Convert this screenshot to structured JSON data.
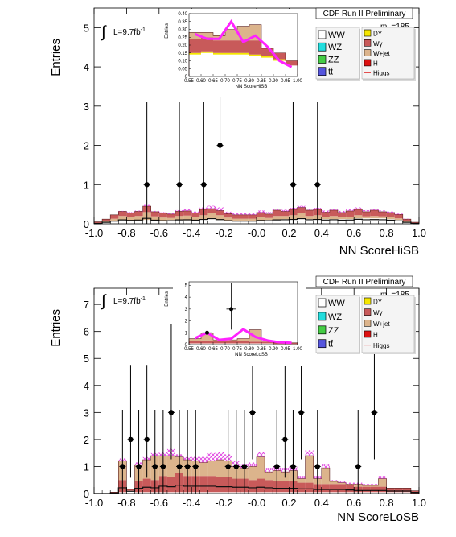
{
  "chart_data": [
    {
      "type": "bar",
      "title": "CDF Run II Preliminary",
      "ylabel": "Entries",
      "xlabel": "NN ScoreHiSB",
      "lumi": "L=9.7fb",
      "lumi_sup": "-1",
      "integral": "∫",
      "mass_label": "m",
      "mass_sub": "H",
      "mass_value": "=185",
      "xlim": [
        -1.0,
        1.0
      ],
      "ylim": [
        0,
        5.5
      ],
      "xticks": [
        "-1.0",
        "-0.8",
        "-0.6",
        "-0.4",
        "-0.2",
        "-0.0",
        "0.2",
        "0.4",
        "0.6",
        "0.8",
        "1.0"
      ],
      "yticks": [
        "0",
        "1",
        "2",
        "3",
        "4",
        "5"
      ],
      "bin_edges": [
        -1.0,
        -0.95,
        -0.9,
        -0.85,
        -0.8,
        -0.75,
        -0.7,
        -0.65,
        -0.6,
        -0.55,
        -0.5,
        -0.45,
        -0.4,
        -0.35,
        -0.3,
        -0.25,
        -0.2,
        -0.15,
        -0.1,
        -0.05,
        0.0,
        0.05,
        0.1,
        0.15,
        0.2,
        0.25,
        0.3,
        0.35,
        0.4,
        0.45,
        0.5,
        0.55,
        0.6,
        0.65,
        0.7,
        0.75,
        0.8,
        0.85,
        0.9,
        0.95,
        1.0
      ],
      "series": [
        {
          "name": "WW",
          "color": "#ffffff",
          "values": [
            0.02,
            0.05,
            0.08,
            0.1,
            0.08,
            0.08,
            0.1,
            0.09,
            0.08,
            0.1,
            0.1,
            0.09,
            0.1,
            0.12,
            0.12,
            0.1,
            0.08,
            0.08,
            0.08,
            0.08,
            0.09,
            0.1,
            0.1,
            0.12,
            0.12,
            0.12,
            0.12,
            0.12,
            0.12,
            0.12,
            0.12,
            0.12,
            0.14,
            0.14,
            0.14,
            0.14,
            0.12,
            0.1,
            0.05,
            0.02
          ]
        },
        {
          "name": "W+jet",
          "color": "#dcb48c",
          "values": [
            0.0,
            0.02,
            0.05,
            0.1,
            0.1,
            0.12,
            0.2,
            0.1,
            0.08,
            0.05,
            0.1,
            0.12,
            0.08,
            0.1,
            0.15,
            0.12,
            0.08,
            0.05,
            0.05,
            0.05,
            0.08,
            0.05,
            0.1,
            0.08,
            0.1,
            0.15,
            0.08,
            0.1,
            0.06,
            0.08,
            0.05,
            0.06,
            0.08,
            0.05,
            0.06,
            0.05,
            0.05,
            0.04,
            0.02,
            0.0
          ]
        },
        {
          "name": "Wγ",
          "color": "#c85a5a",
          "values": [
            0.03,
            0.05,
            0.1,
            0.12,
            0.1,
            0.12,
            0.15,
            0.12,
            0.12,
            0.1,
            0.12,
            0.12,
            0.1,
            0.15,
            0.12,
            0.12,
            0.1,
            0.1,
            0.1,
            0.1,
            0.12,
            0.1,
            0.15,
            0.12,
            0.15,
            0.15,
            0.15,
            0.15,
            0.12,
            0.15,
            0.12,
            0.15,
            0.15,
            0.12,
            0.15,
            0.12,
            0.12,
            0.1,
            0.05,
            0.02
          ]
        }
      ],
      "signal_hatched": [
        0.0,
        0.0,
        0.0,
        0.01,
        0.02,
        0.02,
        0.03,
        0.02,
        0.02,
        0.02,
        0.03,
        0.04,
        0.04,
        0.06,
        0.07,
        0.08,
        0.05,
        0.04,
        0.04,
        0.05,
        0.05,
        0.05,
        0.04,
        0.04,
        0.04,
        0.04,
        0.04,
        0.04,
        0.04,
        0.04,
        0.04,
        0.04,
        0.05,
        0.04,
        0.04,
        0.03,
        0.03,
        0.02,
        0.01,
        0.0
      ],
      "data_points": [
        {
          "x": -0.675,
          "y": 1
        },
        {
          "x": -0.475,
          "y": 1
        },
        {
          "x": -0.325,
          "y": 1
        },
        {
          "x": -0.225,
          "y": 2
        },
        {
          "x": 0.225,
          "y": 1
        },
        {
          "x": 0.375,
          "y": 1
        }
      ],
      "legend": {
        "left": [
          {
            "label": "WW",
            "color": "#ffffff"
          },
          {
            "label": "WZ",
            "color": "#22dddd"
          },
          {
            "label": "ZZ",
            "color": "#44cc44"
          },
          {
            "label": "tt̄",
            "color": "#5555dd"
          }
        ],
        "right": [
          {
            "label": "DY",
            "color": "#f5e600"
          },
          {
            "label": "Wγ",
            "color": "#c85a5a"
          },
          {
            "label": "W+jet",
            "color": "#dcb48c"
          },
          {
            "label": "H",
            "color": "#dd1111"
          },
          {
            "label": "Higgs",
            "color": "line"
          }
        ]
      },
      "inset": {
        "xlabel": "NN ScoreHiSB",
        "ylabel": "Entries",
        "xlim": [
          0.55,
          1.0
        ],
        "ylim": [
          0,
          0.4
        ],
        "xticks": [
          "0.55",
          "0.60",
          "0.65",
          "0.70",
          "0.75",
          "0.80",
          "0.85",
          "0.90",
          "0.95",
          "1.00"
        ],
        "yticks": [
          "0",
          "0.05",
          "0.10",
          "0.15",
          "0.20",
          "0.25",
          "0.30",
          "0.35",
          "0.40"
        ],
        "bin_edges": [
          0.55,
          0.6,
          0.65,
          0.7,
          0.75,
          0.8,
          0.85,
          0.9,
          0.95,
          1.0
        ],
        "series": [
          {
            "name": "WW",
            "color": "#ffffff",
            "values": [
              0.14,
              0.15,
              0.14,
              0.14,
              0.14,
              0.13,
              0.12,
              0.1,
              0.07
            ]
          },
          {
            "name": "DY",
            "color": "#f5e600",
            "values": [
              0.01,
              0.01,
              0.01,
              0.01,
              0.01,
              0.01,
              0.01,
              0.01,
              0.0
            ]
          },
          {
            "name": "Wγ",
            "color": "#c85a5a",
            "values": [
              0.09,
              0.09,
              0.08,
              0.08,
              0.08,
              0.09,
              0.05,
              0.04,
              0.03
            ]
          },
          {
            "name": "W+jet",
            "color": "#dcb48c",
            "values": [
              0.04,
              0.03,
              0.03,
              0.07,
              0.09,
              0.1,
              0.0,
              0.0,
              0.0
            ]
          }
        ],
        "signal_line": [
          0.27,
          0.24,
          0.24,
          0.35,
          0.22,
          0.26,
          0.19,
          0.1,
          0.06
        ]
      }
    },
    {
      "type": "bar",
      "title": "CDF Run II Preliminary",
      "ylabel": "Entries",
      "xlabel": "NN ScoreLoSB",
      "lumi": "L=9.7fb",
      "lumi_sup": "-1",
      "integral": "∫",
      "mass_label": "m",
      "mass_sub": "H",
      "mass_value": "=185",
      "xlim": [
        -1.0,
        1.0
      ],
      "ylim": [
        0,
        7.6
      ],
      "xticks": [
        "-1.0",
        "-0.8",
        "-0.6",
        "-0.4",
        "-0.2",
        "-0.0",
        "0.2",
        "0.4",
        "0.6",
        "0.8",
        "1.0"
      ],
      "yticks": [
        "0",
        "1",
        "2",
        "3",
        "4",
        "5",
        "6",
        "7"
      ],
      "bin_edges": [
        -1.0,
        -0.95,
        -0.9,
        -0.85,
        -0.8,
        -0.75,
        -0.7,
        -0.65,
        -0.6,
        -0.55,
        -0.5,
        -0.45,
        -0.4,
        -0.35,
        -0.3,
        -0.25,
        -0.2,
        -0.15,
        -0.1,
        -0.05,
        0.0,
        0.05,
        0.1,
        0.15,
        0.2,
        0.25,
        0.3,
        0.35,
        0.4,
        0.45,
        0.5,
        0.55,
        0.6,
        0.65,
        0.7,
        0.75,
        0.8,
        0.85,
        0.9,
        0.95,
        1.0
      ],
      "series": [
        {
          "name": "WW",
          "color": "#ffffff",
          "values": [
            0.0,
            0.0,
            0.0,
            0.05,
            0.1,
            0.05,
            0.05,
            0.05,
            0.05,
            0.05,
            0.05,
            0.05,
            0.05,
            0.05,
            0.05,
            0.05,
            0.05,
            0.05,
            0.05,
            0.05,
            0.05,
            0.05,
            0.05,
            0.05,
            0.05,
            0.05,
            0.05,
            0.05,
            0.05,
            0.05,
            0.05,
            0.05,
            0.05,
            0.05,
            0.05,
            0.05,
            0.05,
            0.05,
            0.05,
            0.0
          ]
        },
        {
          "name": "Wγ",
          "color": "#c85a5a",
          "values": [
            0.0,
            0.0,
            0.05,
            0.45,
            0.05,
            0.4,
            0.5,
            0.45,
            0.6,
            0.55,
            0.7,
            0.6,
            0.6,
            0.6,
            0.6,
            0.55,
            0.55,
            0.5,
            0.5,
            0.45,
            0.5,
            0.45,
            0.4,
            0.4,
            0.4,
            0.35,
            0.35,
            0.3,
            0.3,
            0.3,
            0.3,
            0.25,
            0.2,
            0.2,
            0.2,
            0.2,
            0.15,
            0.15,
            0.15,
            0.1
          ]
        },
        {
          "name": "W+jet",
          "color": "#dcb48c",
          "values": [
            0.0,
            0.0,
            0.0,
            0.7,
            0.0,
            0.6,
            0.7,
            0.9,
            0.75,
            0.8,
            0.6,
            0.6,
            0.55,
            0.5,
            0.55,
            0.65,
            0.6,
            0.45,
            0.4,
            0.5,
            0.8,
            0.3,
            0.4,
            0.35,
            0.4,
            0.15,
            1.0,
            0.2,
            0.6,
            0.1,
            0.05,
            0.05,
            0.1,
            0.05,
            0.05,
            0.3,
            0.0,
            0.0,
            0.0,
            0.0
          ]
        }
      ],
      "signal_hatched": [
        0.0,
        0.0,
        0.0,
        0.1,
        0.0,
        0.1,
        0.1,
        0.1,
        0.15,
        0.25,
        0.1,
        0.1,
        0.2,
        0.25,
        0.3,
        0.3,
        0.25,
        0.2,
        0.15,
        0.15,
        0.2,
        0.15,
        0.15,
        0.15,
        0.15,
        0.1,
        0.2,
        0.1,
        0.15,
        0.05,
        0.05,
        0.05,
        0.05,
        0.05,
        0.05,
        0.1,
        0.0,
        0.0,
        0.0,
        0.0
      ],
      "data_points": [
        {
          "x": -0.825,
          "y": 1
        },
        {
          "x": -0.775,
          "y": 2
        },
        {
          "x": -0.725,
          "y": 1
        },
        {
          "x": -0.675,
          "y": 2
        },
        {
          "x": -0.625,
          "y": 1
        },
        {
          "x": -0.575,
          "y": 1
        },
        {
          "x": -0.525,
          "y": 3
        },
        {
          "x": -0.475,
          "y": 1
        },
        {
          "x": -0.425,
          "y": 1
        },
        {
          "x": -0.375,
          "y": 1
        },
        {
          "x": -0.175,
          "y": 1
        },
        {
          "x": -0.125,
          "y": 1
        },
        {
          "x": -0.075,
          "y": 1
        },
        {
          "x": -0.025,
          "y": 3
        },
        {
          "x": 0.125,
          "y": 1
        },
        {
          "x": 0.175,
          "y": 2
        },
        {
          "x": 0.225,
          "y": 1
        },
        {
          "x": 0.275,
          "y": 3
        },
        {
          "x": 0.375,
          "y": 1
        },
        {
          "x": 0.625,
          "y": 1
        },
        {
          "x": 0.725,
          "y": 3
        }
      ],
      "legend": {
        "left": [
          {
            "label": "WW",
            "color": "#ffffff"
          },
          {
            "label": "WZ",
            "color": "#22dddd"
          },
          {
            "label": "ZZ",
            "color": "#44cc44"
          },
          {
            "label": "tt̄",
            "color": "#5555dd"
          }
        ],
        "right": [
          {
            "label": "DY",
            "color": "#f5e600"
          },
          {
            "label": "Wγ",
            "color": "#c85a5a"
          },
          {
            "label": "W+jet",
            "color": "#dcb48c"
          },
          {
            "label": "H",
            "color": "#dd1111"
          },
          {
            "label": "Higgs",
            "color": "line"
          }
        ]
      },
      "inset": {
        "xlabel": "NN ScoreLoSB",
        "ylabel": "Entries",
        "xlim": [
          0.55,
          1.0
        ],
        "ylim": [
          0,
          5.3
        ],
        "xticks": [
          "0.55",
          "0.60",
          "0.65",
          "0.70",
          "0.75",
          "0.80",
          "0.85",
          "0.90",
          "0.95",
          "1.00"
        ],
        "yticks": [
          "0",
          "1",
          "2",
          "3",
          "4",
          "5"
        ],
        "bin_edges": [
          0.55,
          0.6,
          0.65,
          0.7,
          0.75,
          0.8,
          0.85,
          0.9,
          0.95,
          1.0
        ],
        "series": [
          {
            "name": "WW",
            "color": "#ffffff",
            "values": [
              0.1,
              0.1,
              0.1,
              0.1,
              0.1,
              0.1,
              0.1,
              0.05,
              0.05
            ]
          },
          {
            "name": "Wγ",
            "color": "#c85a5a",
            "values": [
              0.2,
              0.25,
              0.2,
              0.2,
              0.2,
              0.15,
              0.15,
              0.1,
              0.1
            ]
          },
          {
            "name": "W+jet",
            "color": "#dcb48c",
            "values": [
              0.2,
              0.65,
              0.1,
              0.1,
              0.2,
              1.0,
              0.05,
              0.0,
              0.0
            ]
          }
        ],
        "signal_line": [
          0.55,
          1.0,
          0.4,
          0.5,
          1.3,
          0.65,
          0.35,
          0.2,
          0.15
        ],
        "data_points": [
          {
            "x": 0.625,
            "y": 1
          },
          {
            "x": 0.725,
            "y": 3
          }
        ]
      }
    }
  ]
}
